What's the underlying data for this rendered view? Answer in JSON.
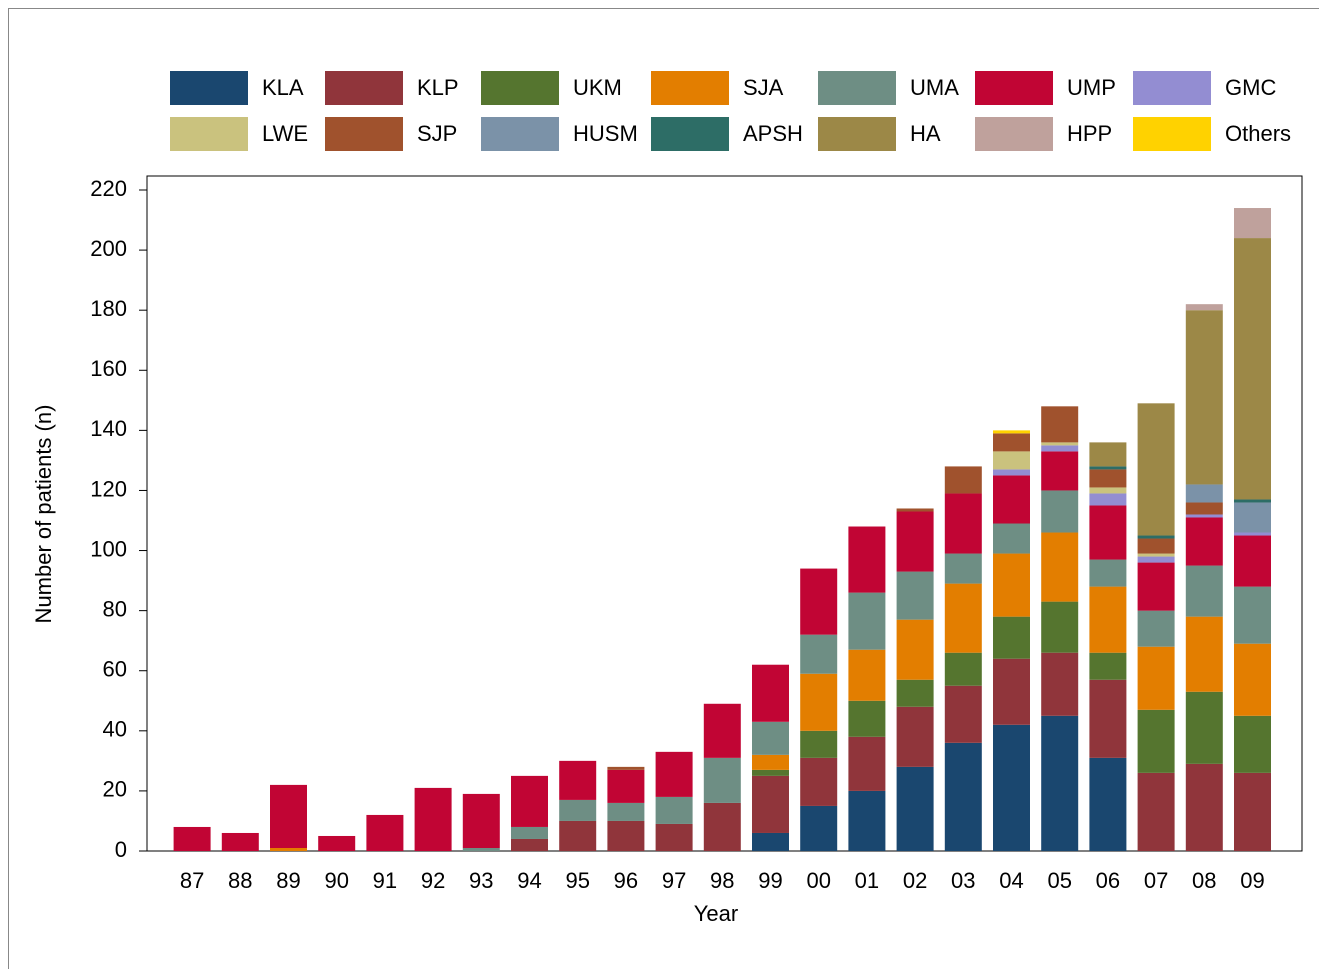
{
  "chart_data": {
    "type": "stacked-bar",
    "x_label": "Year",
    "y_label": "Number of patients (n)",
    "categories": [
      "87",
      "88",
      "89",
      "90",
      "91",
      "92",
      "93",
      "94",
      "95",
      "96",
      "97",
      "98",
      "99",
      "00",
      "01",
      "02",
      "03",
      "04",
      "05",
      "06",
      "07",
      "08",
      "09"
    ],
    "ylim": [
      0,
      220
    ],
    "yticks": [
      0,
      20,
      40,
      60,
      80,
      100,
      120,
      140,
      160,
      180,
      200,
      220
    ],
    "series": [
      {
        "name": "KLA",
        "color": "#1a476f",
        "values": [
          0,
          0,
          0,
          0,
          0,
          0,
          0,
          0,
          0,
          0,
          0,
          0,
          6,
          15,
          20,
          28,
          36,
          42,
          45,
          31,
          0,
          0,
          0
        ]
      },
      {
        "name": "KLP",
        "color": "#90353b",
        "values": [
          0,
          0,
          0,
          0,
          0,
          0,
          0,
          4,
          10,
          10,
          9,
          16,
          19,
          16,
          18,
          20,
          19,
          22,
          21,
          26,
          26,
          29,
          26
        ]
      },
      {
        "name": "UKM",
        "color": "#55752f",
        "values": [
          0,
          0,
          0,
          0,
          0,
          0,
          0,
          0,
          0,
          0,
          0,
          0,
          2,
          9,
          12,
          9,
          11,
          14,
          17,
          9,
          21,
          24,
          19
        ]
      },
      {
        "name": "SJA",
        "color": "#e37e00",
        "values": [
          0,
          0,
          1,
          0,
          0,
          0,
          0,
          0,
          0,
          0,
          0,
          0,
          5,
          19,
          17,
          20,
          23,
          21,
          23,
          22,
          21,
          25,
          24
        ]
      },
      {
        "name": "UMA",
        "color": "#6e8e84",
        "values": [
          0,
          0,
          0,
          0,
          0,
          0,
          1,
          4,
          7,
          6,
          9,
          15,
          11,
          13,
          19,
          16,
          10,
          10,
          14,
          9,
          12,
          17,
          19
        ]
      },
      {
        "name": "UMP",
        "color": "#c10534",
        "values": [
          8,
          6,
          21,
          5,
          12,
          21,
          18,
          17,
          13,
          11,
          15,
          18,
          19,
          22,
          22,
          20,
          20,
          16,
          13,
          18,
          16,
          16,
          17
        ]
      },
      {
        "name": "GMC",
        "color": "#938dd2",
        "values": [
          0,
          0,
          0,
          0,
          0,
          0,
          0,
          0,
          0,
          0,
          0,
          0,
          0,
          0,
          0,
          0,
          0,
          2,
          2,
          4,
          2,
          1,
          1
        ]
      },
      {
        "name": "LWE",
        "color": "#cac27e",
        "values": [
          0,
          0,
          0,
          0,
          0,
          0,
          0,
          0,
          0,
          0,
          0,
          0,
          0,
          0,
          0,
          0,
          0,
          6,
          1,
          2,
          1,
          0,
          0
        ]
      },
      {
        "name": "SJP",
        "color": "#a0522d",
        "values": [
          0,
          0,
          0,
          0,
          0,
          0,
          0,
          0,
          0,
          1,
          0,
          0,
          0,
          0,
          0,
          1,
          9,
          6,
          12,
          6,
          5,
          4,
          0
        ]
      },
      {
        "name": "HUSM",
        "color": "#7b92a8",
        "values": [
          0,
          0,
          0,
          0,
          0,
          0,
          0,
          0,
          0,
          0,
          0,
          0,
          0,
          0,
          0,
          0,
          0,
          0,
          0,
          0,
          0,
          6,
          10
        ]
      },
      {
        "name": "APSH",
        "color": "#2d6d66",
        "values": [
          0,
          0,
          0,
          0,
          0,
          0,
          0,
          0,
          0,
          0,
          0,
          0,
          0,
          0,
          0,
          0,
          0,
          0,
          0,
          1,
          1,
          0,
          1
        ]
      },
      {
        "name": "HA",
        "color": "#9c8847",
        "values": [
          0,
          0,
          0,
          0,
          0,
          0,
          0,
          0,
          0,
          0,
          0,
          0,
          0,
          0,
          0,
          0,
          0,
          0,
          0,
          8,
          44,
          58,
          87
        ]
      },
      {
        "name": "HPP",
        "color": "#bfa19c",
        "values": [
          0,
          0,
          0,
          0,
          0,
          0,
          0,
          0,
          0,
          0,
          0,
          0,
          0,
          0,
          0,
          0,
          0,
          0,
          0,
          0,
          0,
          2,
          10
        ]
      },
      {
        "name": "Others",
        "color": "#ffd200",
        "values": [
          0,
          0,
          0,
          0,
          0,
          0,
          0,
          0,
          0,
          0,
          0,
          0,
          0,
          0,
          0,
          0,
          0,
          1,
          0,
          0,
          0,
          0,
          0
        ]
      }
    ]
  }
}
